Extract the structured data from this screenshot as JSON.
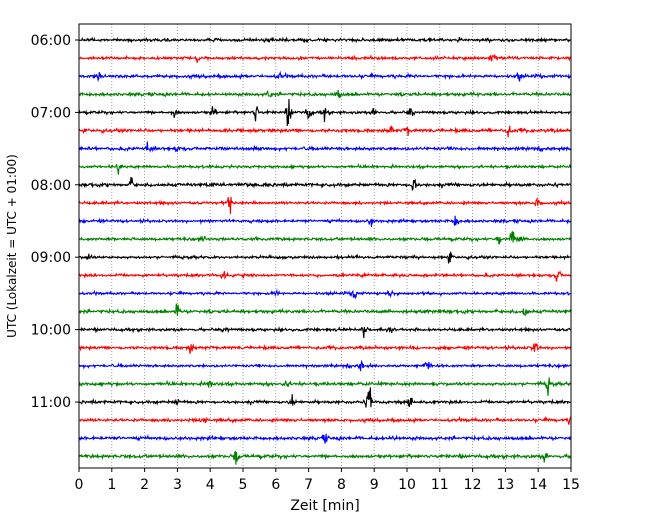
{
  "chart_data": {
    "type": "line",
    "subtype": "helicorder",
    "xlabel": "Zeit  [min]",
    "ylabel": "UTC (Lokalzeit = UTC + 01:00)",
    "xlim": [
      0,
      15
    ],
    "x_ticks": [
      0,
      1,
      2,
      3,
      4,
      5,
      6,
      7,
      8,
      9,
      10,
      11,
      12,
      13,
      14,
      15
    ],
    "x_tick_labels": [
      "0",
      "1",
      "2",
      "3",
      "4",
      "5",
      "6",
      "7",
      "8",
      "9",
      "10",
      "11",
      "12",
      "13",
      "14",
      "15"
    ],
    "y_tick_labels": [
      "06:00",
      "07:00",
      "08:00",
      "09:00",
      "10:00",
      "11:00"
    ],
    "grid": "vertical dotted",
    "color_cycle": [
      "#000000",
      "#ff0000",
      "#0000ff",
      "#008000"
    ],
    "trace_minutes": 15,
    "traces": [
      {
        "start": "06:00",
        "color": "#000000",
        "events": []
      },
      {
        "start": "06:15",
        "color": "#ff0000",
        "events": [
          [
            3.6,
            3
          ],
          [
            12.6,
            4
          ]
        ]
      },
      {
        "start": "06:30",
        "color": "#0000ff",
        "events": [
          [
            0.6,
            9
          ],
          [
            6.1,
            3
          ],
          [
            13.4,
            3
          ]
        ]
      },
      {
        "start": "06:45",
        "color": "#008000",
        "events": [
          [
            5.8,
            4
          ],
          [
            7.9,
            5
          ]
        ]
      },
      {
        "start": "07:00",
        "color": "#000000",
        "events": [
          [
            2.9,
            5
          ],
          [
            4.1,
            6
          ],
          [
            5.4,
            8
          ],
          [
            6.4,
            13
          ],
          [
            7.0,
            7
          ],
          [
            7.5,
            5
          ],
          [
            9.0,
            4
          ],
          [
            10.1,
            4
          ]
        ]
      },
      {
        "start": "07:15",
        "color": "#ff0000",
        "events": [
          [
            9.5,
            4
          ],
          [
            10.0,
            4
          ],
          [
            13.1,
            5
          ]
        ]
      },
      {
        "start": "07:30",
        "color": "#0000ff",
        "events": [
          [
            2.1,
            5
          ],
          [
            3.0,
            3
          ]
        ]
      },
      {
        "start": "07:45",
        "color": "#008000",
        "events": [
          [
            1.2,
            7
          ]
        ]
      },
      {
        "start": "08:00",
        "color": "#000000",
        "events": [
          [
            1.6,
            5
          ],
          [
            10.2,
            9
          ]
        ]
      },
      {
        "start": "08:15",
        "color": "#ff0000",
        "events": [
          [
            4.6,
            7
          ],
          [
            14.0,
            7
          ]
        ]
      },
      {
        "start": "08:30",
        "color": "#0000ff",
        "events": [
          [
            8.9,
            5
          ],
          [
            11.5,
            6
          ]
        ]
      },
      {
        "start": "08:45",
        "color": "#008000",
        "events": [
          [
            3.8,
            4
          ],
          [
            12.8,
            6
          ],
          [
            13.2,
            8
          ],
          [
            13.5,
            6
          ]
        ]
      },
      {
        "start": "09:00",
        "color": "#000000",
        "events": [
          [
            0.3,
            4
          ],
          [
            11.3,
            4
          ]
        ]
      },
      {
        "start": "09:15",
        "color": "#ff0000",
        "events": [
          [
            4.4,
            4
          ],
          [
            14.6,
            7
          ]
        ]
      },
      {
        "start": "09:30",
        "color": "#0000ff",
        "events": [
          [
            6.0,
            3
          ],
          [
            8.4,
            6
          ],
          [
            9.5,
            4
          ]
        ]
      },
      {
        "start": "09:45",
        "color": "#008000",
        "events": [
          [
            3.0,
            7
          ],
          [
            13.6,
            5
          ]
        ]
      },
      {
        "start": "10:00",
        "color": "#000000",
        "events": [
          [
            4.5,
            3
          ],
          [
            8.7,
            8
          ],
          [
            9.5,
            4
          ]
        ]
      },
      {
        "start": "10:15",
        "color": "#ff0000",
        "events": [
          [
            3.4,
            5
          ],
          [
            13.9,
            8
          ]
        ]
      },
      {
        "start": "10:30",
        "color": "#0000ff",
        "events": [
          [
            8.6,
            5
          ],
          [
            10.6,
            4
          ]
        ]
      },
      {
        "start": "10:45",
        "color": "#008000",
        "events": [
          [
            4.0,
            6
          ],
          [
            6.3,
            3
          ],
          [
            14.3,
            6
          ]
        ]
      },
      {
        "start": "11:00",
        "color": "#000000",
        "events": [
          [
            3.0,
            3
          ],
          [
            6.5,
            4
          ],
          [
            8.85,
            22
          ],
          [
            10.1,
            4
          ]
        ]
      },
      {
        "start": "11:15",
        "color": "#ff0000",
        "events": [
          [
            3.8,
            5
          ],
          [
            15.0,
            4
          ]
        ]
      },
      {
        "start": "11:30",
        "color": "#0000ff",
        "events": [
          [
            7.5,
            3
          ],
          [
            9.6,
            3
          ]
        ]
      },
      {
        "start": "11:45",
        "color": "#008000",
        "events": [
          [
            4.8,
            7
          ],
          [
            14.2,
            4
          ]
        ]
      }
    ]
  }
}
